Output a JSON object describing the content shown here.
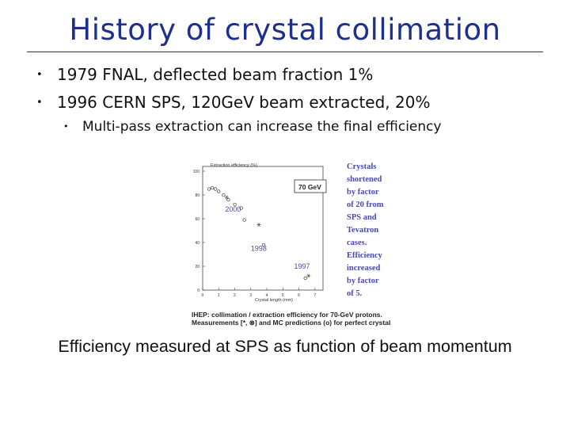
{
  "slide": {
    "title": "History of crystal collimation",
    "bullets": [
      "1979 FNAL, deflected beam fraction 1%",
      "1996 CERN SPS, 120GeV beam extracted, 20%"
    ],
    "sub_bullets": [
      "Multi-pass extraction can increase the final efficiency"
    ],
    "caption": "Efficiency measured at SPS as function of beam momentum"
  },
  "figure": {
    "side_text": [
      "Crystals",
      "shortened",
      "by factor",
      "of 20 from",
      "SPS and",
      "Tevatron",
      "cases.",
      "Efficiency",
      "increased",
      "by factor",
      "of 5."
    ],
    "note_lines": [
      "IHEP: collimation / extraction efficiency for 70-GeV protons.",
      "Measurements [*, ⊗] and MC predictions (o) for perfect crystal"
    ],
    "colors": {
      "side_text": "#4a4aa8",
      "year_labels": "#4a4aa8"
    }
  },
  "chart_data": {
    "type": "scatter",
    "title": "Extraction efficiency (%)",
    "xlabel": "Crystal length (mm)",
    "ylabel": "",
    "xlim": [
      0,
      7.5
    ],
    "ylim": [
      0,
      100
    ],
    "x_ticks": [
      "0",
      "1",
      "2",
      "3",
      "4",
      "5",
      "6",
      "7"
    ],
    "y_ticks": [
      "0",
      "20",
      "40",
      "60",
      "80",
      "100"
    ],
    "legend_box": "70 GeV",
    "grid": false,
    "series": [
      {
        "name": "MC",
        "marker": "circle",
        "points": [
          [
            0.4,
            85
          ],
          [
            0.6,
            86
          ],
          [
            0.8,
            85
          ],
          [
            1.0,
            83
          ],
          [
            1.3,
            80
          ],
          [
            1.6,
            76
          ],
          [
            2.0,
            72
          ],
          [
            2.4,
            69
          ],
          [
            2.6,
            59
          ],
          [
            3.8,
            38
          ],
          [
            6.4,
            10
          ]
        ]
      },
      {
        "name": "measured",
        "marker": "star",
        "points": [
          [
            1.5,
            78
          ],
          [
            3.5,
            55
          ],
          [
            6.6,
            12
          ]
        ]
      }
    ],
    "annotations": [
      {
        "text": "2000",
        "x": 1.4,
        "y": 66
      },
      {
        "text": "1998",
        "x": 3.0,
        "y": 33
      },
      {
        "text": "1997",
        "x": 5.7,
        "y": 18
      }
    ]
  }
}
